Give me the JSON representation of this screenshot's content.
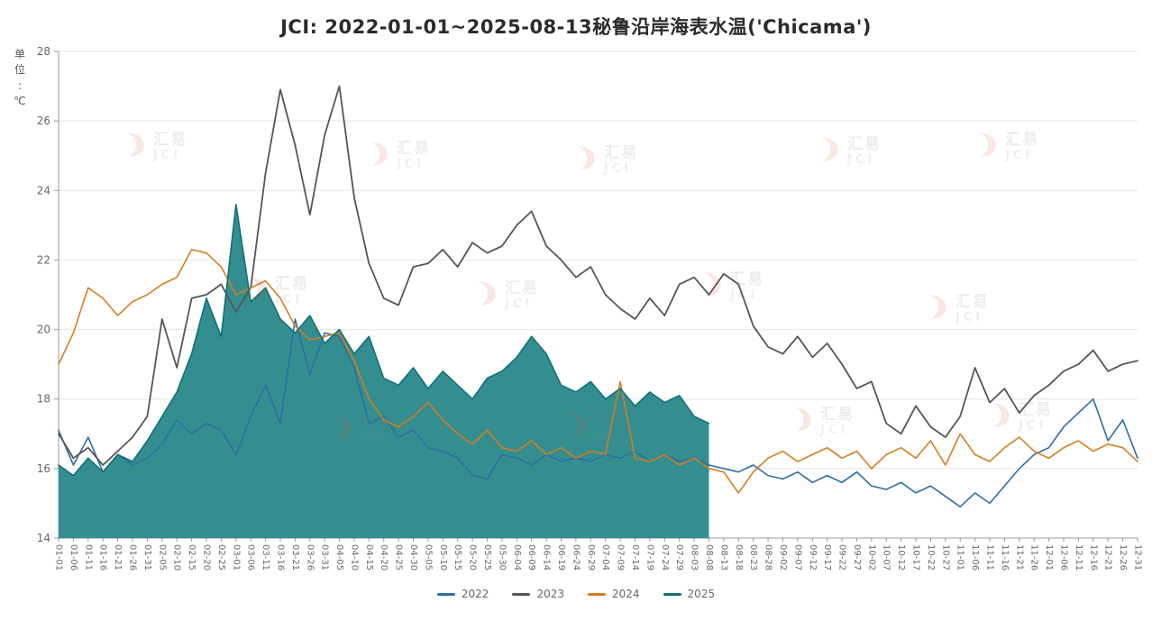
{
  "chart_data": {
    "type": "line",
    "title": "JCI: 2022-01-01~2025-08-13秘鲁沿岸海表水温('Chicama')",
    "y_unit": "单位:℃",
    "xlabel": "",
    "ylabel": "单位:℃",
    "ylim": [
      14,
      28
    ],
    "y_ticks": [
      14,
      16,
      18,
      20,
      22,
      24,
      26,
      28
    ],
    "grid": true,
    "legend_position": "bottom",
    "categories": [
      "01-01",
      "01-06",
      "01-11",
      "01-16",
      "01-21",
      "01-26",
      "01-31",
      "02-05",
      "02-10",
      "02-15",
      "02-20",
      "02-25",
      "03-01",
      "03-06",
      "03-11",
      "03-16",
      "03-21",
      "03-26",
      "03-31",
      "04-05",
      "04-10",
      "04-15",
      "04-20",
      "04-25",
      "04-30",
      "05-05",
      "05-10",
      "05-15",
      "05-20",
      "05-25",
      "05-30",
      "06-04",
      "06-09",
      "06-14",
      "06-19",
      "06-24",
      "06-29",
      "07-04",
      "07-09",
      "07-14",
      "07-19",
      "07-24",
      "07-29",
      "08-03",
      "08-08",
      "08-13",
      "08-18",
      "08-23",
      "08-28",
      "09-02",
      "09-07",
      "09-12",
      "09-17",
      "09-22",
      "09-27",
      "10-02",
      "10-07",
      "10-12",
      "10-17",
      "10-22",
      "10-27",
      "11-01",
      "11-06",
      "11-11",
      "11-16",
      "11-21",
      "11-26",
      "12-01",
      "12-06",
      "12-11",
      "12-16",
      "12-21",
      "12-26",
      "12-31"
    ],
    "series": [
      {
        "name": "2022",
        "type": "line",
        "color": "#2e6da4",
        "values": [
          17.1,
          16.1,
          16.9,
          15.9,
          16.4,
          16.1,
          16.3,
          16.7,
          17.4,
          17.0,
          17.3,
          17.1,
          16.4,
          17.5,
          18.4,
          17.3,
          20.3,
          18.7,
          19.9,
          19.8,
          18.9,
          17.3,
          17.5,
          16.9,
          17.1,
          16.6,
          16.5,
          16.3,
          15.8,
          15.7,
          16.4,
          16.3,
          16.1,
          16.4,
          16.2,
          16.3,
          16.2,
          16.4,
          16.3,
          16.5,
          16.2,
          16.4,
          16.2,
          16.3,
          16.1,
          16.0,
          15.9,
          16.1,
          15.8,
          15.7,
          15.9,
          15.6,
          15.8,
          15.6,
          15.9,
          15.5,
          15.4,
          15.6,
          15.3,
          15.5,
          15.2,
          14.9,
          15.3,
          15.0,
          15.5,
          16.0,
          16.4,
          16.6,
          17.2,
          17.6,
          18.0,
          16.8,
          17.4,
          16.3
        ]
      },
      {
        "name": "2023",
        "type": "line",
        "color": "#555555",
        "values": [
          17.0,
          16.3,
          16.6,
          16.1,
          16.5,
          16.9,
          17.5,
          20.3,
          18.9,
          20.9,
          21.0,
          21.3,
          20.5,
          21.2,
          24.5,
          26.9,
          25.3,
          23.3,
          25.6,
          27.0,
          23.8,
          21.9,
          20.9,
          20.7,
          21.8,
          21.9,
          22.3,
          21.8,
          22.5,
          22.2,
          22.4,
          23.0,
          23.4,
          22.4,
          22.0,
          21.5,
          21.8,
          21.0,
          20.6,
          20.3,
          20.9,
          20.4,
          21.3,
          21.5,
          21.0,
          21.6,
          21.3,
          20.1,
          19.5,
          19.3,
          19.8,
          19.2,
          19.6,
          19.0,
          18.3,
          18.5,
          17.3,
          17.0,
          17.8,
          17.2,
          16.9,
          17.5,
          18.9,
          17.9,
          18.3,
          17.6,
          18.1,
          18.4,
          18.8,
          19.0,
          19.4,
          18.8,
          19.0,
          19.1
        ]
      },
      {
        "name": "2024",
        "type": "line",
        "color": "#d57d20",
        "values": [
          19.0,
          19.9,
          21.2,
          20.9,
          20.4,
          20.8,
          21.0,
          21.3,
          21.5,
          22.3,
          22.2,
          21.8,
          21.0,
          21.2,
          21.4,
          20.9,
          20.1,
          19.7,
          19.8,
          19.9,
          19.1,
          18.0,
          17.4,
          17.2,
          17.5,
          17.9,
          17.4,
          17.0,
          16.7,
          17.1,
          16.6,
          16.5,
          16.8,
          16.4,
          16.6,
          16.3,
          16.5,
          16.4,
          18.5,
          16.3,
          16.2,
          16.4,
          16.1,
          16.3,
          16.0,
          15.9,
          15.3,
          15.9,
          16.3,
          16.5,
          16.2,
          16.4,
          16.6,
          16.3,
          16.5,
          16.0,
          16.4,
          16.6,
          16.3,
          16.8,
          16.1,
          17.0,
          16.4,
          16.2,
          16.6,
          16.9,
          16.5,
          16.3,
          16.6,
          16.8,
          16.5,
          16.7,
          16.6,
          16.2
        ]
      },
      {
        "name": "2025",
        "type": "area",
        "color": "#11707a",
        "fill_color": "#2d8a8c",
        "values": [
          16.1,
          15.8,
          16.3,
          15.9,
          16.4,
          16.2,
          16.8,
          17.5,
          18.2,
          19.3,
          20.9,
          19.8,
          23.6,
          20.8,
          21.2,
          20.3,
          19.9,
          20.4,
          19.6,
          20.0,
          19.3,
          19.8,
          18.6,
          18.4,
          18.9,
          18.3,
          18.8,
          18.4,
          18.0,
          18.6,
          18.8,
          19.2,
          19.8,
          19.3,
          18.4,
          18.2,
          18.5,
          18.0,
          18.3,
          17.8,
          18.2,
          17.9,
          18.1,
          17.5,
          17.3
        ]
      }
    ]
  },
  "watermark": {
    "cn_text": "汇易",
    "en_text": "JCI",
    "logo_color": "#e0452f"
  }
}
